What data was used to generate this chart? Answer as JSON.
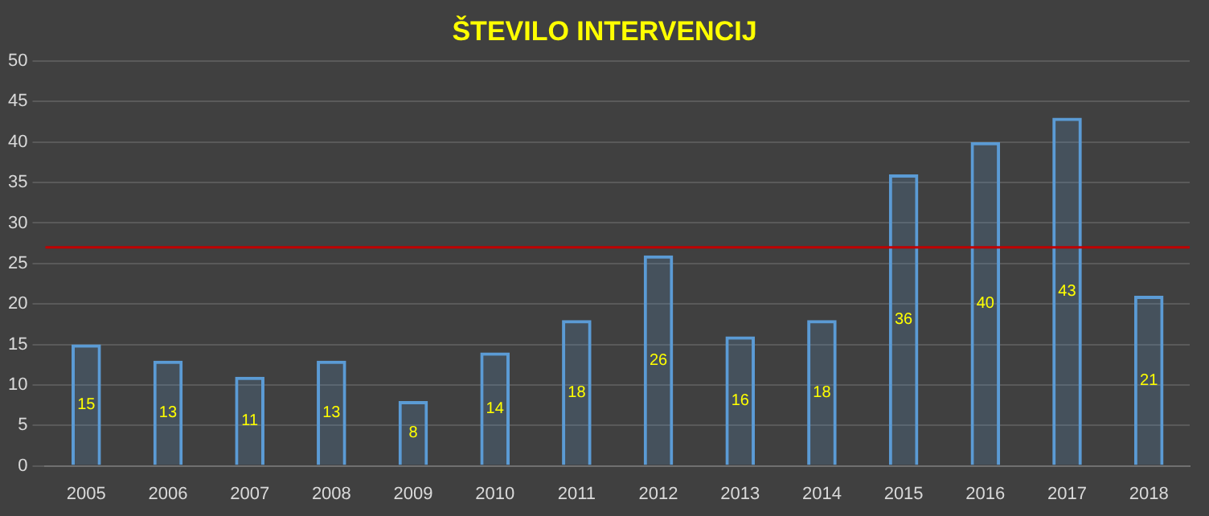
{
  "chart_data": {
    "type": "bar",
    "title": "ŠTEVILO INTERVENCIJ",
    "categories": [
      "2005",
      "2006",
      "2007",
      "2008",
      "2009",
      "2010",
      "2011",
      "2012",
      "2013",
      "2014",
      "2015",
      "2016",
      "2017",
      "2018"
    ],
    "values": [
      15,
      13,
      11,
      13,
      8,
      14,
      18,
      26,
      16,
      18,
      36,
      40,
      43,
      21
    ],
    "color": "#5b9bd5",
    "ylim": [
      0,
      50
    ],
    "yticks": [
      0,
      5,
      10,
      15,
      20,
      25,
      30,
      35,
      40,
      45,
      50
    ],
    "grid": "y",
    "data_labels": true,
    "legend": false,
    "ref_lines": [
      {
        "axis": "y",
        "value": 27,
        "color": "#c00000"
      }
    ]
  }
}
